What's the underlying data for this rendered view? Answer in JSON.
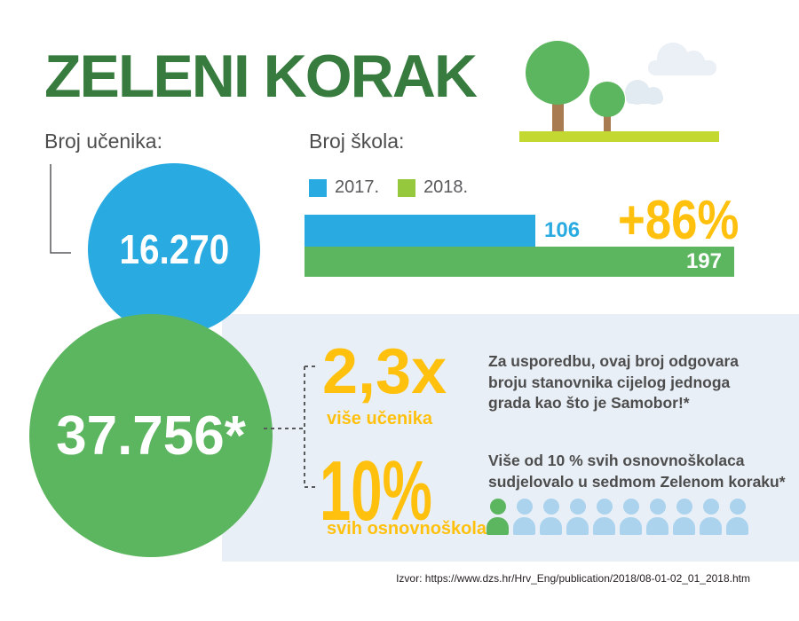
{
  "title": "ZELENI KORAK",
  "colors": {
    "title_green": "#377C3E",
    "blue": "#29ABE2",
    "green": "#5CB55F",
    "lime": "#95C83D",
    "grass": "#C3D831",
    "yellow": "#FFC10E",
    "dark_text": "#4D4D4D",
    "label_gray": "#58595B",
    "panel_bg": "#E9EFF6",
    "people_blue": "#ABD3EE",
    "trunk_brown": "#A87C50",
    "cloud_light": "#EAF0F6",
    "cloud_dark": "#E2EAF2",
    "source_black": "#231F20"
  },
  "students": {
    "label": "Broj učenika:",
    "value": "16.270"
  },
  "schools": {
    "label": "Broj škola:",
    "legend": [
      {
        "year": "2017.",
        "color": "#29ABE2"
      },
      {
        "year": "2018.",
        "color": "#95C83D"
      }
    ],
    "change_label": "+86%"
  },
  "chart_data": {
    "type": "bar",
    "orientation": "horizontal",
    "title": "Broj škola:",
    "categories": [
      "2017.",
      "2018."
    ],
    "values": [
      106,
      197
    ],
    "series_colors": [
      "#29ABE2",
      "#5CB55F"
    ],
    "value_labels": [
      "106",
      "197"
    ],
    "annotation": "+86%",
    "xlim": [
      0,
      197
    ],
    "grid": false,
    "legend_position": "top"
  },
  "big_stat": {
    "value": "37.756*"
  },
  "stat_multiplier": {
    "value": "2,3x",
    "label": "više učenika"
  },
  "comparison_text": {
    "lines": [
      "Za usporedbu, ovaj broj odgovara",
      "broju stanovnika cijelog jednoga",
      "grada kao što je Samobor!*"
    ]
  },
  "stat_percent": {
    "value": "10%",
    "label": "svih osnovnoškolaca"
  },
  "participation_text": {
    "lines": [
      "Više od 10 % svih osnovnoškolaca",
      "sudjelovalo u sedmom Zelenom koraku*"
    ]
  },
  "people": {
    "total": 10,
    "highlighted": 1
  },
  "source": "Izvor: https://www.dzs.hr/Hrv_Eng/publication/2018/08-01-02_01_2018.htm"
}
